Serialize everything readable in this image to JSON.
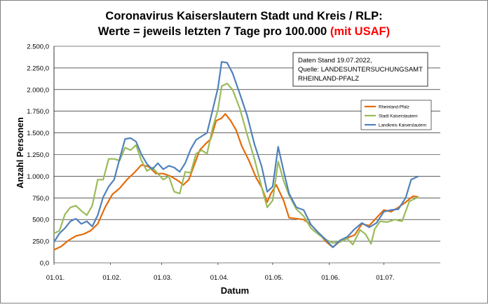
{
  "chart_data": {
    "type": "line",
    "title_line1": "Coronavirus Kaiserslautern Stadt und Kreis / RLP:",
    "title_line2_black": "Werte = jeweils letzten 7 Tage pro 100.000 ",
    "title_line2_red": "(mit USAF)",
    "xlabel": "Datum",
    "ylabel": "Anzahl Personen",
    "ylim": [
      0,
      2500
    ],
    "y_ticks": [
      0,
      250,
      500,
      750,
      1000,
      1250,
      1500,
      1750,
      2000,
      2250,
      2500
    ],
    "y_tick_labels": [
      "0,0",
      "250,0",
      "500,0",
      "750,0",
      "1.000,0",
      "1.250,0",
      "1.500,0",
      "1.750,0",
      "2.000,0",
      "2.250,0",
      "2.500,0"
    ],
    "x_range": [
      "2022-01-01",
      "2022-08-01"
    ],
    "x_ticks": [
      "2022-01-01",
      "2022-02-01",
      "2022-03-01",
      "2022-04-01",
      "2022-05-01",
      "2022-06-01",
      "2022-07-01"
    ],
    "x_tick_labels": [
      "01.01.",
      "01.02.",
      "01.03.",
      "01.04.",
      "01.05.",
      "01.06.",
      "01.07."
    ],
    "grid": true,
    "annotation": [
      "Daten Stand 19.07.2022,",
      "Quelle: LANDESUNTERSUCHUNGSAMT",
      "RHEINLAND-PFALZ"
    ],
    "legend_position": "right",
    "series": [
      {
        "name": "Rheinland-Pfalz",
        "color": "#e36c09",
        "points": [
          [
            "2022-01-01",
            150
          ],
          [
            "2022-01-05",
            190
          ],
          [
            "2022-01-09",
            260
          ],
          [
            "2022-01-13",
            310
          ],
          [
            "2022-01-17",
            330
          ],
          [
            "2022-01-21",
            370
          ],
          [
            "2022-01-25",
            450
          ],
          [
            "2022-01-29",
            640
          ],
          [
            "2022-02-02",
            790
          ],
          [
            "2022-02-06",
            860
          ],
          [
            "2022-02-10",
            960
          ],
          [
            "2022-02-14",
            1040
          ],
          [
            "2022-02-18",
            1130
          ],
          [
            "2022-02-22",
            1110
          ],
          [
            "2022-02-26",
            1030
          ],
          [
            "2022-03-02",
            1030
          ],
          [
            "2022-03-06",
            1000
          ],
          [
            "2022-03-10",
            950
          ],
          [
            "2022-03-13",
            900
          ],
          [
            "2022-03-16",
            960
          ],
          [
            "2022-03-19",
            1130
          ],
          [
            "2022-03-22",
            1300
          ],
          [
            "2022-03-25",
            1370
          ],
          [
            "2022-03-28",
            1430
          ],
          [
            "2022-03-31",
            1640
          ],
          [
            "2022-04-03",
            1670
          ],
          [
            "2022-04-05",
            1720
          ],
          [
            "2022-04-08",
            1640
          ],
          [
            "2022-04-11",
            1530
          ],
          [
            "2022-04-14",
            1350
          ],
          [
            "2022-04-18",
            1180
          ],
          [
            "2022-04-22",
            980
          ],
          [
            "2022-04-25",
            870
          ],
          [
            "2022-04-28",
            700
          ],
          [
            "2022-04-30",
            800
          ],
          [
            "2022-05-03",
            900
          ],
          [
            "2022-05-07",
            720
          ],
          [
            "2022-05-10",
            520
          ],
          [
            "2022-05-14",
            510
          ],
          [
            "2022-05-18",
            500
          ],
          [
            "2022-05-22",
            440
          ],
          [
            "2022-05-26",
            350
          ],
          [
            "2022-05-30",
            250
          ],
          [
            "2022-06-03",
            180
          ],
          [
            "2022-06-07",
            250
          ],
          [
            "2022-06-11",
            290
          ],
          [
            "2022-06-15",
            320
          ],
          [
            "2022-06-19",
            450
          ],
          [
            "2022-06-23",
            430
          ],
          [
            "2022-06-27",
            520
          ],
          [
            "2022-07-01",
            610
          ],
          [
            "2022-07-05",
            590
          ],
          [
            "2022-07-09",
            640
          ],
          [
            "2022-07-13",
            700
          ],
          [
            "2022-07-17",
            770
          ],
          [
            "2022-07-20",
            760
          ]
        ]
      },
      {
        "name": "Stadt Kaiserslautern",
        "color": "#9bbb59",
        "points": [
          [
            "2022-01-01",
            340
          ],
          [
            "2022-01-04",
            370
          ],
          [
            "2022-01-07",
            560
          ],
          [
            "2022-01-10",
            640
          ],
          [
            "2022-01-13",
            660
          ],
          [
            "2022-01-16",
            600
          ],
          [
            "2022-01-19",
            550
          ],
          [
            "2022-01-22",
            660
          ],
          [
            "2022-01-25",
            960
          ],
          [
            "2022-01-28",
            960
          ],
          [
            "2022-01-31",
            1200
          ],
          [
            "2022-02-03",
            1200
          ],
          [
            "2022-02-06",
            1180
          ],
          [
            "2022-02-09",
            1330
          ],
          [
            "2022-02-12",
            1300
          ],
          [
            "2022-02-15",
            1360
          ],
          [
            "2022-02-18",
            1180
          ],
          [
            "2022-02-21",
            1060
          ],
          [
            "2022-02-24",
            1100
          ],
          [
            "2022-02-27",
            1030
          ],
          [
            "2022-03-02",
            960
          ],
          [
            "2022-03-05",
            1000
          ],
          [
            "2022-03-08",
            820
          ],
          [
            "2022-03-11",
            800
          ],
          [
            "2022-03-14",
            1050
          ],
          [
            "2022-03-17",
            1040
          ],
          [
            "2022-03-20",
            1260
          ],
          [
            "2022-03-23",
            1300
          ],
          [
            "2022-03-26",
            1260
          ],
          [
            "2022-03-29",
            1550
          ],
          [
            "2022-04-01",
            1770
          ],
          [
            "2022-04-03",
            2040
          ],
          [
            "2022-04-06",
            2070
          ],
          [
            "2022-04-09",
            2000
          ],
          [
            "2022-04-13",
            1780
          ],
          [
            "2022-04-17",
            1480
          ],
          [
            "2022-04-21",
            1200
          ],
          [
            "2022-04-25",
            870
          ],
          [
            "2022-04-28",
            640
          ],
          [
            "2022-05-01",
            720
          ],
          [
            "2022-05-04",
            1170
          ],
          [
            "2022-05-07",
            950
          ],
          [
            "2022-05-10",
            780
          ],
          [
            "2022-05-14",
            620
          ],
          [
            "2022-05-18",
            540
          ],
          [
            "2022-05-22",
            400
          ],
          [
            "2022-05-26",
            330
          ],
          [
            "2022-05-30",
            270
          ],
          [
            "2022-06-03",
            230
          ],
          [
            "2022-06-07",
            240
          ],
          [
            "2022-06-11",
            280
          ],
          [
            "2022-06-14",
            210
          ],
          [
            "2022-06-18",
            380
          ],
          [
            "2022-06-21",
            330
          ],
          [
            "2022-06-24",
            220
          ],
          [
            "2022-06-26",
            390
          ],
          [
            "2022-06-29",
            480
          ],
          [
            "2022-07-03",
            470
          ],
          [
            "2022-07-07",
            500
          ],
          [
            "2022-07-11",
            480
          ],
          [
            "2022-07-15",
            710
          ],
          [
            "2022-07-20",
            760
          ]
        ]
      },
      {
        "name": "Landkreis Kaiserslautern",
        "color": "#4f81bd",
        "points": [
          [
            "2022-01-01",
            240
          ],
          [
            "2022-01-04",
            340
          ],
          [
            "2022-01-07",
            400
          ],
          [
            "2022-01-10",
            480
          ],
          [
            "2022-01-13",
            510
          ],
          [
            "2022-01-16",
            450
          ],
          [
            "2022-01-19",
            480
          ],
          [
            "2022-01-22",
            420
          ],
          [
            "2022-01-25",
            550
          ],
          [
            "2022-01-28",
            760
          ],
          [
            "2022-01-31",
            880
          ],
          [
            "2022-02-03",
            960
          ],
          [
            "2022-02-06",
            1200
          ],
          [
            "2022-02-09",
            1430
          ],
          [
            "2022-02-12",
            1440
          ],
          [
            "2022-02-15",
            1400
          ],
          [
            "2022-02-18",
            1250
          ],
          [
            "2022-02-21",
            1140
          ],
          [
            "2022-02-24",
            1080
          ],
          [
            "2022-02-27",
            1150
          ],
          [
            "2022-03-02",
            1080
          ],
          [
            "2022-03-05",
            1120
          ],
          [
            "2022-03-08",
            1100
          ],
          [
            "2022-03-11",
            1050
          ],
          [
            "2022-03-14",
            1150
          ],
          [
            "2022-03-17",
            1310
          ],
          [
            "2022-03-20",
            1420
          ],
          [
            "2022-03-23",
            1460
          ],
          [
            "2022-03-26",
            1500
          ],
          [
            "2022-03-29",
            1760
          ],
          [
            "2022-04-01",
            2020
          ],
          [
            "2022-04-03",
            2320
          ],
          [
            "2022-04-06",
            2310
          ],
          [
            "2022-04-09",
            2190
          ],
          [
            "2022-04-13",
            1950
          ],
          [
            "2022-04-17",
            1700
          ],
          [
            "2022-04-21",
            1370
          ],
          [
            "2022-04-25",
            1110
          ],
          [
            "2022-04-28",
            820
          ],
          [
            "2022-05-01",
            880
          ],
          [
            "2022-05-04",
            1340
          ],
          [
            "2022-05-07",
            1060
          ],
          [
            "2022-05-10",
            800
          ],
          [
            "2022-05-14",
            640
          ],
          [
            "2022-05-18",
            610
          ],
          [
            "2022-05-22",
            440
          ],
          [
            "2022-05-26",
            350
          ],
          [
            "2022-05-30",
            270
          ],
          [
            "2022-06-03",
            180
          ],
          [
            "2022-06-07",
            260
          ],
          [
            "2022-06-11",
            300
          ],
          [
            "2022-06-15",
            390
          ],
          [
            "2022-06-19",
            460
          ],
          [
            "2022-06-23",
            410
          ],
          [
            "2022-06-27",
            460
          ],
          [
            "2022-07-01",
            590
          ],
          [
            "2022-07-05",
            610
          ],
          [
            "2022-07-09",
            620
          ],
          [
            "2022-07-13",
            750
          ],
          [
            "2022-07-16",
            960
          ],
          [
            "2022-07-20",
            1000
          ]
        ]
      }
    ]
  }
}
